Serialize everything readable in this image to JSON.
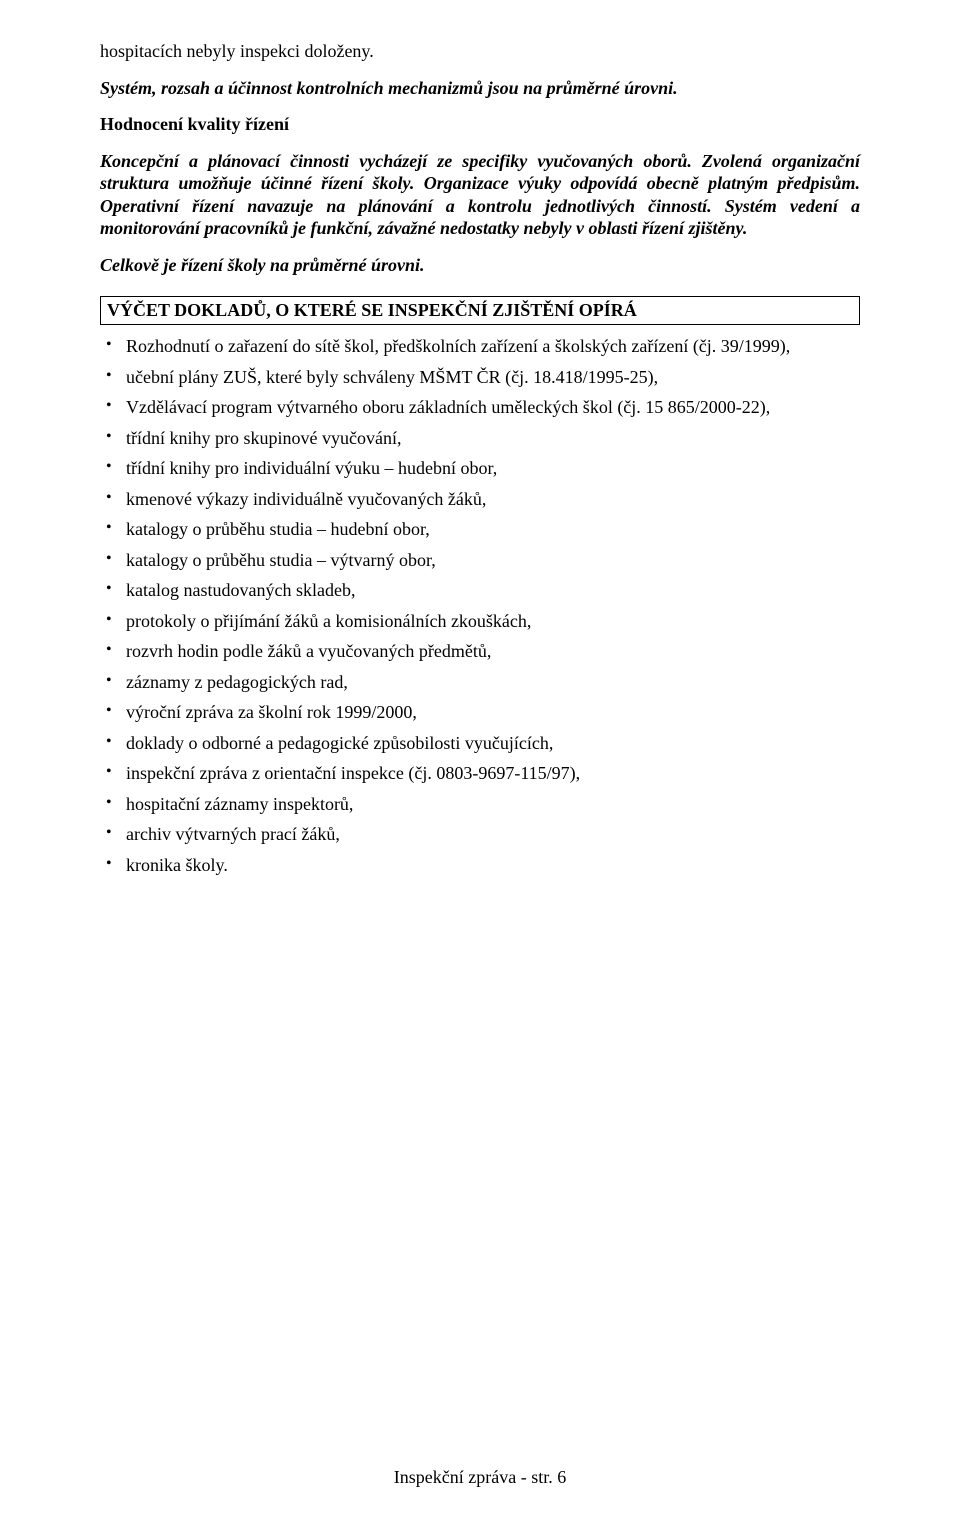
{
  "intro": {
    "p1": "hospitacích nebyly inspekci doloženy.",
    "p2": "Systém, rozsah a účinnost kontrolních mechanizmů jsou na průměrné úrovni.",
    "heading": "Hodnocení kvality řízení",
    "p3": "Koncepční a plánovací činnosti vycházejí ze specifiky vyučovaných oborů. Zvolená organizační struktura umožňuje účinné řízení školy. Organizace výuky odpovídá obecně platným předpisům. Operativní řízení navazuje na plánování a kontrolu jednotlivých činností. Systém vedení a monitorování pracovníků je funkční, závažné nedostatky nebyly v oblasti řízení zjištěny.",
    "p4": "Celkově je řízení školy na průměrné úrovni."
  },
  "section": {
    "title": "VÝČET DOKLADŮ, O KTERÉ SE INSPEKČNÍ ZJIŠTĚNÍ OPÍRÁ"
  },
  "bullets": [
    "Rozhodnutí o zařazení do sítě škol, předškolních zařízení a školských zařízení (čj. 39/1999),",
    "učební plány ZUŠ, které byly schváleny MŠMT ČR (čj. 18.418/1995-25),",
    "Vzdělávací program výtvarného oboru základních uměleckých škol (čj. 15 865/2000-22),",
    "třídní knihy pro skupinové vyučování,",
    "třídní knihy pro individuální výuku – hudební obor,",
    "kmenové výkazy individuálně vyučovaných žáků,",
    "katalogy o průběhu studia – hudební obor,",
    "katalogy o průběhu studia – výtvarný obor,",
    "katalog nastudovaných skladeb,",
    "protokoly o přijímání žáků a komisionálních zkouškách,",
    "rozvrh hodin podle žáků a vyučovaných předmětů,",
    "záznamy z pedagogických rad,",
    "výroční zpráva za školní rok 1999/2000,",
    "doklady o odborné a pedagogické způsobilosti vyučujících,",
    "inspekční zpráva z orientační inspekce (čj. 0803-9697-115/97),",
    "hospitační záznamy inspektorů,",
    "archiv výtvarných prací žáků,",
    "kronika školy."
  ],
  "footer": "Inspekční zpráva - str. 6"
}
